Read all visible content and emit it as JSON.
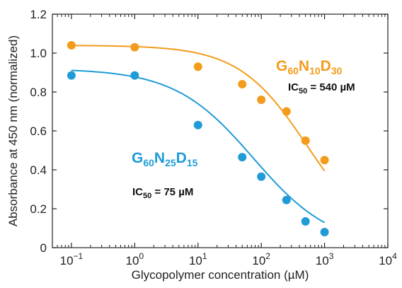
{
  "chart_data": {
    "type": "scatter",
    "title": "",
    "xlabel": "Glycopolymer concentration (µM)",
    "ylabel": "Absorbance at 450 nm (normalized)",
    "xscale": "log",
    "xlim": [
      0.05,
      10000
    ],
    "ylim": [
      0,
      1.2
    ],
    "x_ticks": [
      {
        "value": 0.1,
        "base": "10",
        "exp": "−1"
      },
      {
        "value": 1,
        "base": "10",
        "exp": "0"
      },
      {
        "value": 10,
        "base": "10",
        "exp": "1"
      },
      {
        "value": 100,
        "base": "10",
        "exp": "2"
      },
      {
        "value": 1000,
        "base": "10",
        "exp": "3"
      },
      {
        "value": 10000,
        "base": "10",
        "exp": "4"
      }
    ],
    "y_ticks": [
      {
        "value": 0,
        "label": "0"
      },
      {
        "value": 0.2,
        "label": "0.2"
      },
      {
        "value": 0.4,
        "label": "0.4"
      },
      {
        "value": 0.6,
        "label": "0.6"
      },
      {
        "value": 0.8,
        "label": "0.8"
      },
      {
        "value": 1.0,
        "label": "1.0"
      },
      {
        "value": 1.2,
        "label": "1.2"
      }
    ],
    "grid": false,
    "legend": "none",
    "series": [
      {
        "name_parts": [
          "G",
          "60",
          "N",
          "10",
          "D",
          "30"
        ],
        "color": "#f39c1c",
        "ic50_parts": [
          "IC",
          "50",
          " = 540 µM"
        ],
        "ic50_value_uM": 540,
        "fit_top": 1.04,
        "fit_hill": 0.8,
        "points": [
          {
            "x": 0.1,
            "y": 1.04
          },
          {
            "x": 1,
            "y": 1.03
          },
          {
            "x": 10,
            "y": 0.93
          },
          {
            "x": 50,
            "y": 0.84
          },
          {
            "x": 100,
            "y": 0.76
          },
          {
            "x": 250,
            "y": 0.7
          },
          {
            "x": 500,
            "y": 0.55
          },
          {
            "x": 1000,
            "y": 0.45
          }
        ]
      },
      {
        "name_parts": [
          "G",
          "60",
          "N",
          "25",
          "D",
          "15"
        ],
        "color": "#1f9bd7",
        "ic50_parts": [
          "IC",
          "50",
          " = 75 µM"
        ],
        "ic50_value_uM": 75,
        "fit_top": 0.92,
        "fit_hill": 0.7,
        "points": [
          {
            "x": 0.1,
            "y": 0.885
          },
          {
            "x": 1,
            "y": 0.885
          },
          {
            "x": 10,
            "y": 0.63
          },
          {
            "x": 50,
            "y": 0.465
          },
          {
            "x": 100,
            "y": 0.365
          },
          {
            "x": 250,
            "y": 0.245
          },
          {
            "x": 500,
            "y": 0.135
          },
          {
            "x": 1000,
            "y": 0.08
          }
        ]
      }
    ]
  }
}
